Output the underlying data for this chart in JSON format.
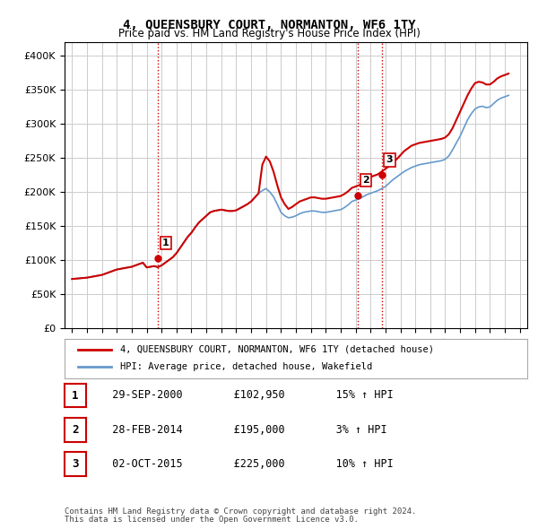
{
  "title": "4, QUEENSBURY COURT, NORMANTON, WF6 1TY",
  "subtitle": "Price paid vs. HM Land Registry's House Price Index (HPI)",
  "legend_line1": "4, QUEENSBURY COURT, NORMANTON, WF6 1TY (detached house)",
  "legend_line2": "HPI: Average price, detached house, Wakefield",
  "footer1": "Contains HM Land Registry data © Crown copyright and database right 2024.",
  "footer2": "This data is licensed under the Open Government Licence v3.0.",
  "sales": [
    {
      "num": 1,
      "date": "29-SEP-2000",
      "price": 102950,
      "pct": "15%",
      "dir": "↑"
    },
    {
      "num": 2,
      "date": "28-FEB-2014",
      "price": 195000,
      "pct": "3%",
      "dir": "↑"
    },
    {
      "num": 3,
      "date": "02-OCT-2015",
      "price": 225000,
      "pct": "10%",
      "dir": "↑"
    }
  ],
  "sale_years": [
    2000.75,
    2014.16,
    2015.75
  ],
  "sale_prices": [
    102950,
    195000,
    225000
  ],
  "hpi_color": "#6699cc",
  "price_color": "#cc0000",
  "vline_color": "#cc0000",
  "grid_color": "#cccccc",
  "bg_color": "#ffffff",
  "ylim": [
    0,
    420000
  ],
  "yticks": [
    0,
    50000,
    100000,
    150000,
    200000,
    250000,
    300000,
    350000,
    400000
  ],
  "hpi_data": {
    "years": [
      1995.0,
      1995.25,
      1995.5,
      1995.75,
      1996.0,
      1996.25,
      1996.5,
      1996.75,
      1997.0,
      1997.25,
      1997.5,
      1997.75,
      1998.0,
      1998.25,
      1998.5,
      1998.75,
      1999.0,
      1999.25,
      1999.5,
      1999.75,
      2000.0,
      2000.25,
      2000.5,
      2000.75,
      2001.0,
      2001.25,
      2001.5,
      2001.75,
      2002.0,
      2002.25,
      2002.5,
      2002.75,
      2003.0,
      2003.25,
      2003.5,
      2003.75,
      2004.0,
      2004.25,
      2004.5,
      2004.75,
      2005.0,
      2005.25,
      2005.5,
      2005.75,
      2006.0,
      2006.25,
      2006.5,
      2006.75,
      2007.0,
      2007.25,
      2007.5,
      2007.75,
      2008.0,
      2008.25,
      2008.5,
      2008.75,
      2009.0,
      2009.25,
      2009.5,
      2009.75,
      2010.0,
      2010.25,
      2010.5,
      2010.75,
      2011.0,
      2011.25,
      2011.5,
      2011.75,
      2012.0,
      2012.25,
      2012.5,
      2012.75,
      2013.0,
      2013.25,
      2013.5,
      2013.75,
      2014.0,
      2014.25,
      2014.5,
      2014.75,
      2015.0,
      2015.25,
      2015.5,
      2015.75,
      2016.0,
      2016.25,
      2016.5,
      2016.75,
      2017.0,
      2017.25,
      2017.5,
      2017.75,
      2018.0,
      2018.25,
      2018.5,
      2018.75,
      2019.0,
      2019.25,
      2019.5,
      2019.75,
      2020.0,
      2020.25,
      2020.5,
      2020.75,
      2021.0,
      2021.25,
      2021.5,
      2021.75,
      2022.0,
      2022.25,
      2022.5,
      2022.75,
      2023.0,
      2023.25,
      2023.5,
      2023.75,
      2024.0,
      2024.25
    ],
    "hpi_values": [
      72000,
      72500,
      73000,
      73500,
      74000,
      75000,
      76000,
      77000,
      78000,
      80000,
      82000,
      84000,
      86000,
      87000,
      88000,
      89000,
      90000,
      92000,
      94000,
      96000,
      89000,
      90000,
      91000,
      89500,
      92000,
      96000,
      100000,
      104000,
      110000,
      118000,
      126000,
      134000,
      140000,
      148000,
      155000,
      160000,
      165000,
      170000,
      172000,
      173000,
      174000,
      173000,
      172000,
      172000,
      173000,
      176000,
      179000,
      182000,
      186000,
      192000,
      198000,
      202000,
      205000,
      200000,
      193000,
      182000,
      170000,
      165000,
      162000,
      163000,
      165000,
      168000,
      170000,
      171000,
      172000,
      172000,
      171000,
      170000,
      170000,
      171000,
      172000,
      173000,
      174000,
      177000,
      181000,
      186000,
      188000,
      190000,
      193000,
      196000,
      198000,
      200000,
      202000,
      205000,
      208000,
      213000,
      218000,
      222000,
      226000,
      230000,
      233000,
      236000,
      238000,
      240000,
      241000,
      242000,
      243000,
      244000,
      245000,
      246000,
      248000,
      253000,
      262000,
      272000,
      282000,
      294000,
      306000,
      315000,
      322000,
      325000,
      326000,
      324000,
      325000,
      330000,
      335000,
      338000,
      340000,
      342000
    ],
    "price_values": [
      72000,
      72500,
      73000,
      73500,
      74000,
      75000,
      76000,
      77000,
      78000,
      80000,
      82000,
      84000,
      86000,
      87000,
      88000,
      89000,
      90000,
      92000,
      94000,
      96000,
      89000,
      90000,
      91000,
      89500,
      92000,
      96000,
      100000,
      104000,
      110000,
      118000,
      126000,
      134000,
      140000,
      148000,
      155000,
      160000,
      165000,
      170000,
      172000,
      173000,
      174000,
      173000,
      172000,
      172000,
      173000,
      176000,
      179000,
      182000,
      186000,
      192000,
      198000,
      240000,
      252000,
      245000,
      230000,
      210000,
      192000,
      182000,
      175000,
      178000,
      182000,
      186000,
      188000,
      190000,
      192000,
      192000,
      191000,
      190000,
      190000,
      191000,
      192000,
      193000,
      194000,
      197000,
      201000,
      206000,
      208000,
      210000,
      214000,
      220000,
      222000,
      224000,
      226000,
      230000,
      234000,
      238000,
      243000,
      248000,
      254000,
      260000,
      264000,
      268000,
      270000,
      272000,
      273000,
      274000,
      275000,
      276000,
      277000,
      278000,
      280000,
      285000,
      294000,
      306000,
      318000,
      330000,
      342000,
      352000,
      360000,
      362000,
      361000,
      358000,
      358000,
      362000,
      367000,
      370000,
      372000,
      374000
    ]
  }
}
